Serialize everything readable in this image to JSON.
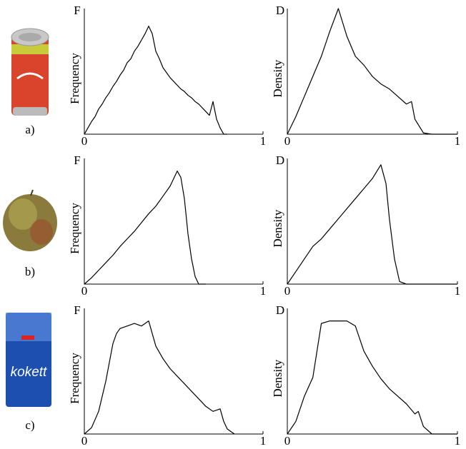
{
  "panels": [
    {
      "label": "a)"
    },
    {
      "label": "b)"
    },
    {
      "label": "c)"
    }
  ],
  "chart_data": [
    {
      "type": "line",
      "y_top_label": "F",
      "ylabel": "Frequency",
      "color": "#000000",
      "xlim": [
        0,
        1
      ],
      "ylim": [
        0,
        1
      ],
      "xticks": [
        0,
        1
      ],
      "x": [
        0,
        0.02,
        0.04,
        0.06,
        0.08,
        0.1,
        0.12,
        0.14,
        0.16,
        0.18,
        0.2,
        0.22,
        0.24,
        0.26,
        0.28,
        0.3,
        0.32,
        0.34,
        0.36,
        0.38,
        0.4,
        0.42,
        0.44,
        0.46,
        0.48,
        0.5,
        0.52,
        0.54,
        0.56,
        0.58,
        0.6,
        0.62,
        0.64,
        0.66,
        0.68,
        0.7,
        0.72,
        0.74,
        0.76,
        0.78,
        0.8
      ],
      "values": [
        0,
        0.05,
        0.1,
        0.14,
        0.2,
        0.24,
        0.29,
        0.33,
        0.38,
        0.42,
        0.47,
        0.51,
        0.57,
        0.6,
        0.66,
        0.7,
        0.75,
        0.8,
        0.86,
        0.8,
        0.66,
        0.6,
        0.53,
        0.49,
        0.45,
        0.42,
        0.39,
        0.36,
        0.34,
        0.31,
        0.29,
        0.26,
        0.24,
        0.21,
        0.18,
        0.15,
        0.26,
        0.12,
        0.05,
        0,
        0
      ]
    },
    {
      "type": "line",
      "y_top_label": "D",
      "ylabel": "Density",
      "color": "#000000",
      "xlim": [
        0,
        1
      ],
      "ylim": [
        0,
        1
      ],
      "xticks": [
        0,
        1
      ],
      "x": [
        0,
        0.05,
        0.1,
        0.15,
        0.2,
        0.25,
        0.3,
        0.35,
        0.4,
        0.45,
        0.5,
        0.55,
        0.6,
        0.65,
        0.7,
        0.73,
        0.75,
        0.8,
        0.85,
        0.9,
        0.95,
        1
      ],
      "values": [
        0,
        0.14,
        0.3,
        0.46,
        0.62,
        0.82,
        1,
        0.78,
        0.62,
        0.55,
        0.46,
        0.4,
        0.36,
        0.3,
        0.24,
        0.26,
        0.12,
        0.01,
        0,
        0,
        0,
        0
      ]
    },
    {
      "type": "line",
      "y_top_label": "F",
      "ylabel": "Frequency",
      "color": "#000000",
      "xlim": [
        0,
        1
      ],
      "ylim": [
        0,
        1
      ],
      "xticks": [
        0,
        1
      ],
      "x": [
        0,
        0.04,
        0.08,
        0.12,
        0.16,
        0.2,
        0.24,
        0.28,
        0.32,
        0.36,
        0.4,
        0.44,
        0.48,
        0.52,
        0.54,
        0.56,
        0.58,
        0.6,
        0.62,
        0.64,
        0.68
      ],
      "values": [
        0,
        0.05,
        0.11,
        0.17,
        0.23,
        0.3,
        0.36,
        0.42,
        0.49,
        0.56,
        0.62,
        0.7,
        0.78,
        0.9,
        0.85,
        0.68,
        0.4,
        0.2,
        0.06,
        0,
        0
      ]
    },
    {
      "type": "line",
      "y_top_label": "D",
      "ylabel": "Density",
      "color": "#000000",
      "xlim": [
        0,
        1
      ],
      "ylim": [
        0,
        1
      ],
      "xticks": [
        0,
        1
      ],
      "x": [
        0,
        0.05,
        0.1,
        0.15,
        0.2,
        0.25,
        0.3,
        0.35,
        0.4,
        0.45,
        0.5,
        0.55,
        0.58,
        0.6,
        0.63,
        0.66,
        0.7,
        0.8,
        0.9,
        1
      ],
      "values": [
        0,
        0.1,
        0.2,
        0.3,
        0.36,
        0.44,
        0.52,
        0.6,
        0.68,
        0.76,
        0.84,
        0.95,
        0.8,
        0.52,
        0.2,
        0.02,
        0,
        0,
        0,
        0
      ]
    },
    {
      "type": "line",
      "y_top_label": "F",
      "ylabel": "Frequency",
      "color": "#000000",
      "xlim": [
        0,
        1
      ],
      "ylim": [
        0,
        1
      ],
      "xticks": [
        0,
        1
      ],
      "x": [
        0,
        0.04,
        0.08,
        0.12,
        0.16,
        0.18,
        0.2,
        0.24,
        0.28,
        0.32,
        0.36,
        0.4,
        0.44,
        0.48,
        0.52,
        0.56,
        0.6,
        0.64,
        0.68,
        0.72,
        0.76,
        0.78,
        0.8,
        0.84
      ],
      "values": [
        0,
        0.05,
        0.18,
        0.42,
        0.72,
        0.8,
        0.84,
        0.86,
        0.88,
        0.86,
        0.9,
        0.7,
        0.6,
        0.52,
        0.46,
        0.4,
        0.34,
        0.28,
        0.22,
        0.18,
        0.2,
        0.1,
        0.04,
        0
      ]
    },
    {
      "type": "line",
      "y_top_label": "D",
      "ylabel": "Density",
      "color": "#000000",
      "xlim": [
        0,
        1
      ],
      "ylim": [
        0,
        1
      ],
      "xticks": [
        0,
        1
      ],
      "x": [
        0,
        0.05,
        0.1,
        0.15,
        0.2,
        0.25,
        0.3,
        0.35,
        0.4,
        0.45,
        0.5,
        0.55,
        0.6,
        0.65,
        0.7,
        0.75,
        0.77,
        0.8,
        0.85,
        0.9,
        1
      ],
      "values": [
        0,
        0.1,
        0.3,
        0.45,
        0.88,
        0.9,
        0.9,
        0.9,
        0.86,
        0.66,
        0.54,
        0.44,
        0.36,
        0.3,
        0.24,
        0.16,
        0.18,
        0.06,
        0,
        0,
        0
      ]
    }
  ]
}
